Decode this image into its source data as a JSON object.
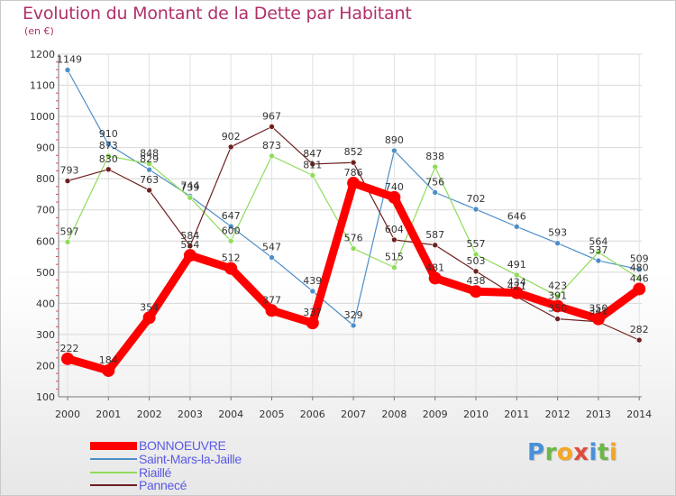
{
  "title": "Evolution du Montant de la Dette par Habitant",
  "unit": "(en €)",
  "logo": {
    "text": "Proxiti",
    "colors": [
      "#4a90d9",
      "#6bb846",
      "#f5a623",
      "#e04a3a",
      "#4a90d9",
      "#6bb846",
      "#f5a623"
    ]
  },
  "chart_data": {
    "type": "line",
    "x": [
      "2000",
      "2001",
      "2002",
      "2003",
      "2004",
      "2005",
      "2006",
      "2007",
      "2008",
      "2009",
      "2010",
      "2011",
      "2012",
      "2013",
      "2014"
    ],
    "ylim": [
      100,
      1200
    ],
    "yticks": [
      100,
      200,
      300,
      400,
      500,
      600,
      700,
      800,
      900,
      1000,
      1100,
      1200
    ],
    "grid": true,
    "legend_position": "bottom-left",
    "series": [
      {
        "name": "BONNOEUVRE",
        "color": "#ff0000",
        "values": [
          222,
          184,
          354,
          554,
          512,
          377,
          337,
          786,
          740,
          481,
          438,
          434,
          391,
          350,
          446
        ],
        "labels": [
          "222",
          "184",
          "354",
          "554",
          "512",
          "377",
          "337",
          "786",
          "740",
          "481",
          "438",
          "434",
          "391",
          "350",
          "446"
        ]
      },
      {
        "name": "Saint-Mars-la-Jaille",
        "color": "#4d8ec9",
        "values": [
          1149,
          910,
          829,
          744,
          647,
          547,
          439,
          329,
          890,
          756,
          702,
          646,
          593,
          537,
          509
        ],
        "labels": [
          "1149",
          "910",
          "829",
          "744",
          "647",
          "547",
          "439",
          "329",
          "890",
          "756",
          "702",
          "646",
          "593",
          "537",
          "509"
        ]
      },
      {
        "name": "Riaillé",
        "color": "#8fdc5a",
        "values": [
          597,
          873,
          848,
          739,
          600,
          873,
          811,
          576,
          515,
          838,
          557,
          491,
          423,
          564,
          480
        ],
        "labels": [
          "597",
          "873",
          "848",
          "739",
          "600",
          "873",
          "811",
          "576",
          "515",
          "838",
          "557",
          "491",
          "423",
          "564",
          "480"
        ]
      },
      {
        "name": "Pannecé",
        "color": "#6e1f1f",
        "values": [
          793,
          830,
          763,
          584,
          902,
          967,
          847,
          852,
          604,
          587,
          503,
          421,
          350,
          341,
          282
        ],
        "labels": [
          "793",
          "830",
          "763",
          "584",
          "902",
          "967",
          "847",
          "852",
          "604",
          "587",
          "503",
          "421",
          "350",
          "341",
          "282"
        ]
      }
    ]
  }
}
